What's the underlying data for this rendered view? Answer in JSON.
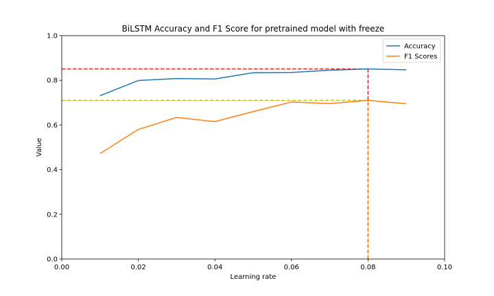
{
  "chart_data": {
    "type": "line",
    "title": "BiLSTM Accuracy and F1 Score for pretrained model with freeze",
    "xlabel": "Learning rate",
    "ylabel": "Value",
    "xlim": [
      0.0,
      0.1
    ],
    "ylim": [
      0.0,
      1.0
    ],
    "xticks": [
      0.0,
      0.02,
      0.04,
      0.06,
      0.08,
      0.1
    ],
    "xtick_labels": [
      "0.00",
      "0.02",
      "0.04",
      "0.06",
      "0.08",
      "0.10"
    ],
    "yticks": [
      0.0,
      0.2,
      0.4,
      0.6,
      0.8,
      1.0
    ],
    "ytick_labels": [
      "0.0",
      "0.2",
      "0.4",
      "0.6",
      "0.8",
      "1.0"
    ],
    "grid": false,
    "legend_position": "top-right",
    "x": [
      0.01,
      0.02,
      0.03,
      0.04,
      0.05,
      0.06,
      0.07,
      0.08,
      0.09
    ],
    "series": [
      {
        "name": "Accuracy",
        "color": "#1f77b4",
        "values": [
          0.731,
          0.799,
          0.808,
          0.806,
          0.834,
          0.835,
          0.845,
          0.851,
          0.847
        ]
      },
      {
        "name": "F1 Scores",
        "color": "#ff7f0e",
        "values": [
          0.472,
          0.58,
          0.634,
          0.615,
          0.66,
          0.703,
          0.696,
          0.71,
          0.695
        ]
      }
    ],
    "reference_lines": [
      {
        "kind": "horizontal",
        "y": 0.851,
        "x_end": 0.08,
        "color": "#d62728"
      },
      {
        "kind": "vertical",
        "x": 0.08,
        "y_end": 0.851,
        "color": "#d62728"
      },
      {
        "kind": "horizontal",
        "y": 0.71,
        "x_end": 0.08,
        "color": "#bcbd22"
      },
      {
        "kind": "vertical",
        "x": 0.08,
        "y_end": 0.71,
        "color": "#ff7f0e"
      }
    ]
  }
}
